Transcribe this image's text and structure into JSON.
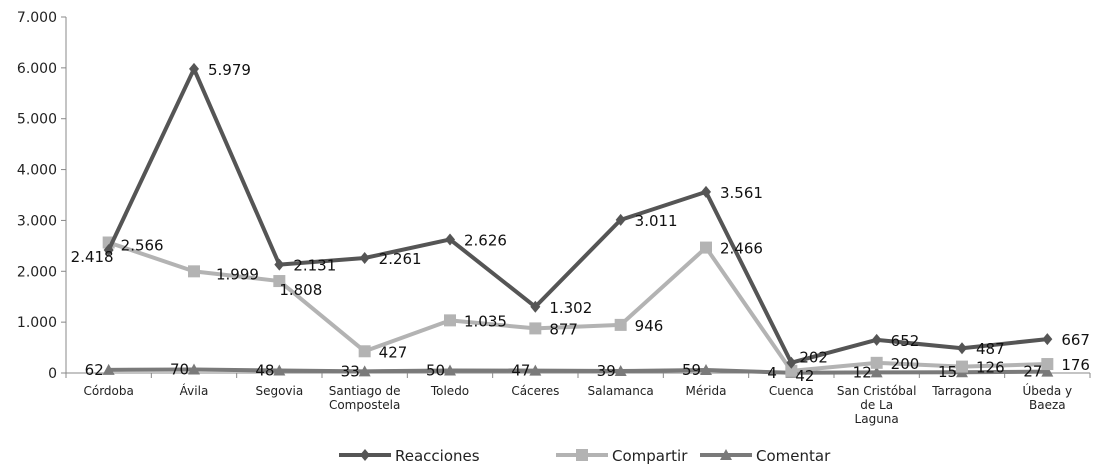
{
  "chart_data": {
    "type": "line",
    "title": "",
    "xlabel": "",
    "ylabel": "",
    "ylim": [
      0,
      7000
    ],
    "yticks": [
      0,
      1000,
      2000,
      3000,
      4000,
      5000,
      6000,
      7000
    ],
    "ytick_labels": [
      "0",
      "1.000",
      "2.000",
      "3.000",
      "4.000",
      "5.000",
      "6.000",
      "7.000"
    ],
    "grid": false,
    "legend_position": "bottom",
    "categories": [
      [
        "Córdoba"
      ],
      [
        "Ávila"
      ],
      [
        "Segovia"
      ],
      [
        "Santiago de",
        "Compostela"
      ],
      [
        "Toledo"
      ],
      [
        "Cáceres"
      ],
      [
        "Salamanca"
      ],
      [
        "Mérida"
      ],
      [
        "Cuenca"
      ],
      [
        "San Cristóbal",
        "de La",
        "Laguna"
      ],
      [
        "Tarragona"
      ],
      [
        "Úbeda y",
        "Baeza"
      ]
    ],
    "series": [
      {
        "name": "Reacciones",
        "color": "#555555",
        "marker": "diamond",
        "values": [
          2418,
          5979,
          2131,
          2261,
          2626,
          1302,
          3011,
          3561,
          202,
          652,
          487,
          667
        ],
        "labels": [
          "2.418",
          "5.979",
          "2.131",
          "2.261",
          "2.626",
          "1.302",
          "3.011",
          "3.561",
          "202",
          "652",
          "487",
          "667"
        ]
      },
      {
        "name": "Compartir",
        "color": "#b3b3b3",
        "marker": "square",
        "values": [
          2566,
          1999,
          1808,
          427,
          1035,
          877,
          946,
          2466,
          42,
          200,
          126,
          176
        ],
        "labels": [
          "2.566",
          "1.999",
          "1.808",
          "427",
          "1.035",
          "877",
          "946",
          "2.466",
          "42",
          "200",
          "126",
          "176"
        ]
      },
      {
        "name": "Comentar",
        "color": "#7a7a7a",
        "marker": "triangle",
        "values": [
          62,
          70,
          48,
          33,
          50,
          47,
          39,
          59,
          4,
          12,
          15,
          27
        ],
        "labels": [
          "62",
          "70",
          "48",
          "33",
          "50",
          "47",
          "39",
          "59",
          "4",
          "12",
          "15",
          "27"
        ]
      }
    ]
  }
}
